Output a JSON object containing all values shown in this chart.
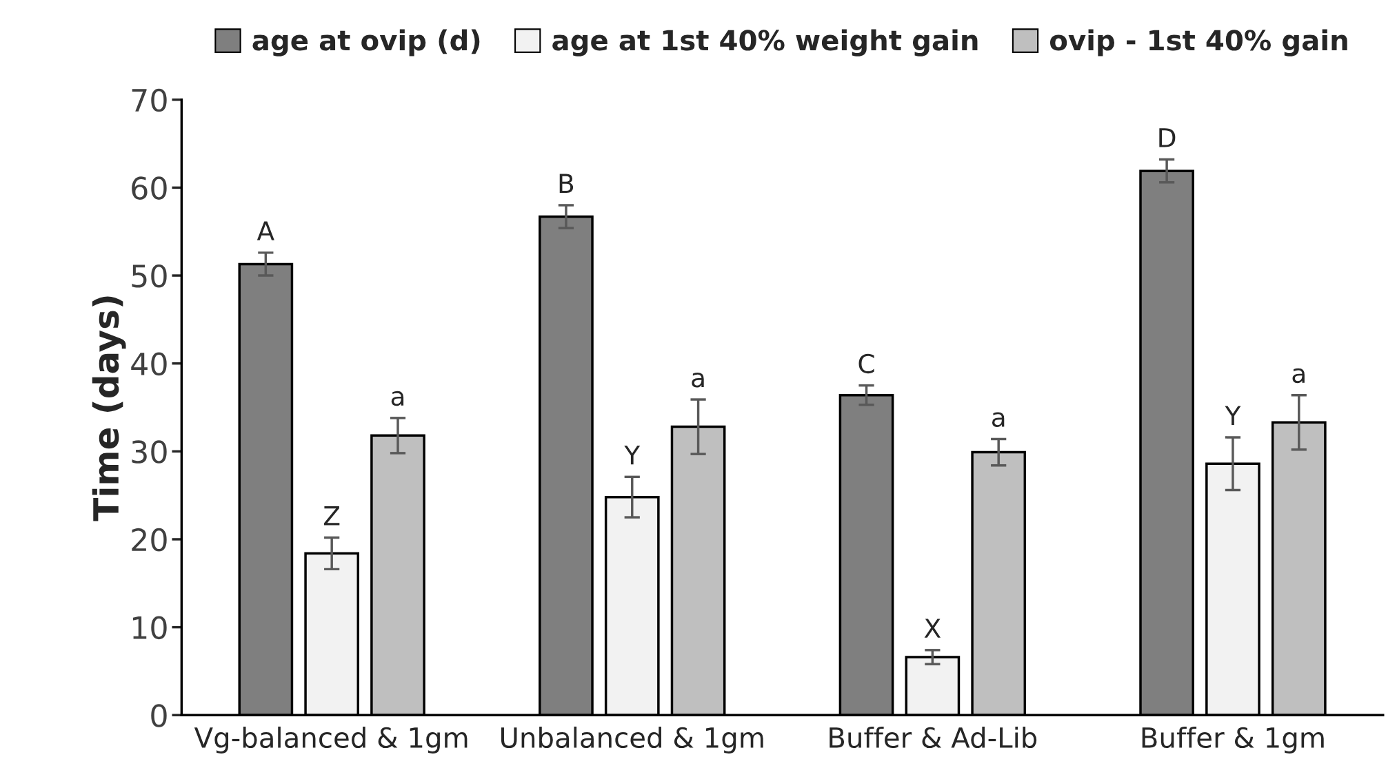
{
  "chart_data": {
    "type": "bar",
    "ylabel": "Time (days)",
    "categories": [
      "Vg-balanced & 1gm",
      "Unbalanced & 1gm",
      "Buffer & Ad-Lib",
      "Buffer & 1gm"
    ],
    "series": [
      {
        "name": "age at ovip (d)",
        "color": "#7f7f7f",
        "values": [
          51.3,
          56.7,
          36.4,
          61.9
        ],
        "errors": [
          1.3,
          1.3,
          1.1,
          1.3
        ],
        "value_labels": [
          "A",
          "B",
          "C",
          "D"
        ]
      },
      {
        "name": "age at 1st 40% weight gain",
        "color": "#f2f2f2",
        "values": [
          18.4,
          24.8,
          6.6,
          28.6
        ],
        "errors": [
          1.8,
          2.3,
          0.8,
          3.0
        ],
        "value_labels": [
          "Z",
          "Y",
          "X",
          "Y"
        ]
      },
      {
        "name": "ovip - 1st 40% gain",
        "color": "#bfbfbf",
        "values": [
          31.8,
          32.8,
          29.9,
          33.3
        ],
        "errors": [
          2.0,
          3.1,
          1.5,
          3.1
        ],
        "value_labels": [
          "a",
          "a",
          "a",
          "a"
        ]
      }
    ],
    "ylim": [
      0,
      70
    ],
    "yticks": [
      0,
      10,
      20,
      30,
      40,
      50,
      60,
      70
    ],
    "legend": "top",
    "grid": false
  }
}
